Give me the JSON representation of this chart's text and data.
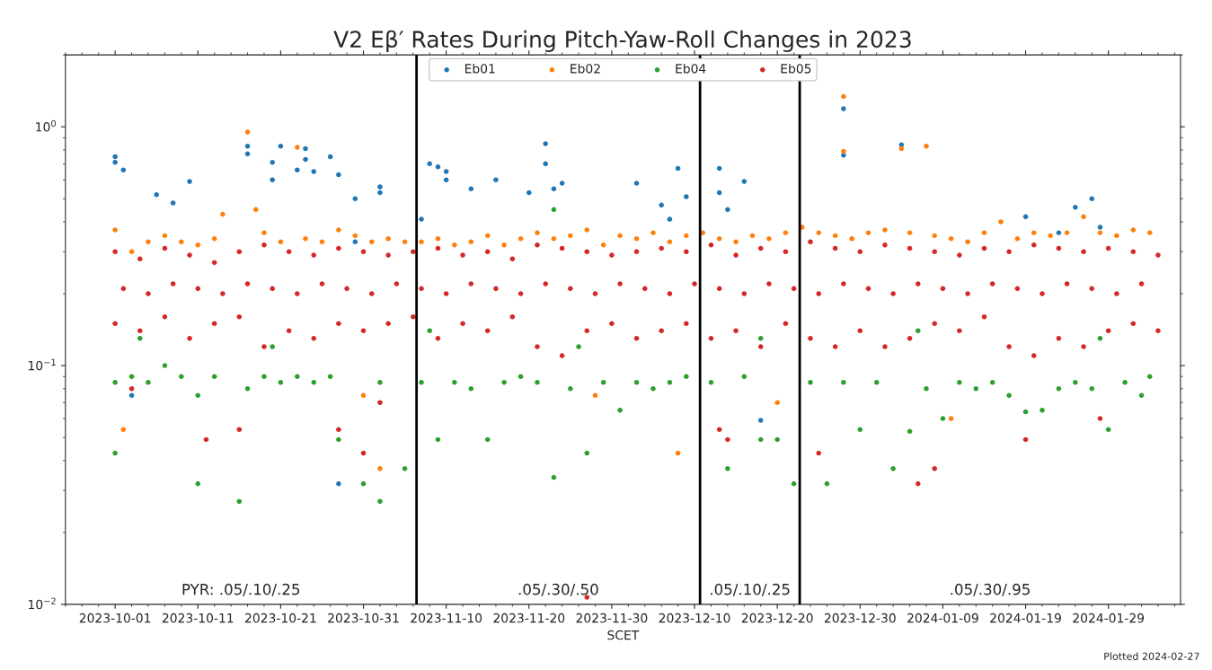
{
  "chart_data": {
    "type": "scatter",
    "title": "V2 Eβ′ Rates During Pitch-Yaw-Roll Changes in 2023",
    "xlabel": "SCET",
    "log": "y",
    "grid": false,
    "legend": "top",
    "marker": "circle",
    "xlim": [
      "2023-09-25",
      "2024-02-06T17:00"
    ],
    "xticks": [
      {
        "value": "2023-10-01",
        "label": "2023-10-01"
      },
      {
        "value": "2023-10-11",
        "label": "2023-10-11"
      },
      {
        "value": "2023-10-21",
        "label": "2023-10-21"
      },
      {
        "value": "2023-10-31",
        "label": "2023-10-31"
      },
      {
        "value": "2023-11-10",
        "label": "2023-11-10"
      },
      {
        "value": "2023-11-20",
        "label": "2023-11-20"
      },
      {
        "value": "2023-11-30",
        "label": "2023-11-30"
      },
      {
        "value": "2023-12-10",
        "label": "2023-12-10"
      },
      {
        "value": "2023-12-20",
        "label": "2023-12-20"
      },
      {
        "value": "2023-12-30",
        "label": "2023-12-30"
      },
      {
        "value": "2024-01-09",
        "label": "2024-01-09"
      },
      {
        "value": "2024-01-19",
        "label": "2024-01-19"
      },
      {
        "value": "2024-01-29",
        "label": "2024-01-29"
      }
    ],
    "ylim": [
      0.01,
      2
    ],
    "yticks": [
      {
        "value": 1,
        "label": "10$^{0}$"
      },
      {
        "value": 0.1,
        "label": "10$^{−1}$"
      },
      {
        "value": 0.01,
        "label": "10$^{−2}$"
      }
    ],
    "ref_lines": [
      {
        "axis": "x",
        "value": "2023-11-06T10:00",
        "color": "#000000",
        "line_style": "solid"
      },
      {
        "axis": "x",
        "value": "2023-12-10T16:00",
        "color": "#000000",
        "line_style": "solid"
      },
      {
        "axis": "x",
        "value": "2023-12-22T17:00",
        "color": "#000000",
        "line_style": "solid"
      }
    ],
    "annotations": [
      "PYR: .05/.10/.25",
      ".05/.30/.50",
      ".05/.10/.25",
      ".05/.30/.95",
      "Plotted 2024-02-27"
    ],
    "series": [
      {
        "name": "Eb01",
        "color": "#1f77b4",
        "x": [
          "2023-10-01",
          "2023-10-01",
          "2023-10-02",
          "2023-10-06",
          "2023-10-08",
          "2023-10-10",
          "2023-10-17",
          "2023-10-17",
          "2023-10-20",
          "2023-10-21",
          "2023-10-20",
          "2023-10-23",
          "2023-10-24",
          "2023-10-24",
          "2023-10-25",
          "2023-10-27",
          "2023-10-28",
          "2023-10-30",
          "2023-11-02",
          "2023-11-02",
          "2023-10-30",
          "2023-10-28",
          "2023-10-03",
          "2023-11-07",
          "2023-11-08",
          "2023-11-09",
          "2023-11-10",
          "2023-11-10",
          "2023-11-13",
          "2023-11-16",
          "2023-11-20",
          "2023-11-22",
          "2023-11-22",
          "2023-11-23",
          "2023-11-24",
          "2023-12-03",
          "2023-12-06",
          "2023-12-07",
          "2023-12-08",
          "2023-12-09",
          "2023-12-13",
          "2023-12-13",
          "2023-12-14",
          "2023-12-16",
          "2023-12-18",
          "2023-12-28",
          "2023-12-28",
          "2024-01-04",
          "2024-01-07",
          "2024-01-19",
          "2024-01-23",
          "2024-01-25",
          "2024-01-27",
          "2024-01-28"
        ],
        "values": [
          0.75,
          0.71,
          0.66,
          0.52,
          0.48,
          0.59,
          0.77,
          0.83,
          0.6,
          0.83,
          0.71,
          0.66,
          0.81,
          0.73,
          0.65,
          0.75,
          0.63,
          0.5,
          0.53,
          0.56,
          0.33,
          0.032,
          0.075,
          0.41,
          0.7,
          0.68,
          0.65,
          0.6,
          0.55,
          0.6,
          0.53,
          0.85,
          0.7,
          0.55,
          0.58,
          0.58,
          0.47,
          0.41,
          0.67,
          0.51,
          0.67,
          0.53,
          0.45,
          0.59,
          0.059,
          1.19,
          0.76,
          0.84,
          null,
          0.42,
          0.36,
          0.46,
          0.5,
          0.38
        ]
      },
      {
        "name": "Eb02",
        "color": "#ff7f0e",
        "x": [
          "2023-10-01",
          "2023-10-03",
          "2023-10-05",
          "2023-10-07",
          "2023-10-09",
          "2023-10-11",
          "2023-10-13",
          "2023-10-14",
          "2023-10-17",
          "2023-10-18",
          "2023-10-19",
          "2023-10-21",
          "2023-10-23",
          "2023-10-24",
          "2023-10-26",
          "2023-10-28",
          "2023-10-30",
          "2023-11-01",
          "2023-11-03",
          "2023-11-05",
          "2023-11-07",
          "2023-11-09",
          "2023-11-11",
          "2023-11-13",
          "2023-11-15",
          "2023-11-17",
          "2023-11-19",
          "2023-11-21",
          "2023-11-23",
          "2023-11-25",
          "2023-11-27",
          "2023-11-29",
          "2023-12-01",
          "2023-12-03",
          "2023-12-05",
          "2023-12-07",
          "2023-12-09",
          "2023-12-11",
          "2023-12-13",
          "2023-12-15",
          "2023-12-17",
          "2023-12-19",
          "2023-12-21",
          "2023-12-23",
          "2023-12-25",
          "2023-12-27",
          "2023-12-28",
          "2023-12-28",
          "2023-12-29",
          "2023-12-31",
          "2024-01-02",
          "2024-01-04",
          "2024-01-05",
          "2024-01-07",
          "2024-01-08",
          "2024-01-10",
          "2024-01-12",
          "2024-01-14",
          "2024-01-16",
          "2024-01-18",
          "2024-01-20",
          "2024-01-22",
          "2024-01-24",
          "2024-01-26",
          "2024-01-28",
          "2024-01-30",
          "2024-02-01",
          "2024-02-03",
          "2023-10-02",
          "2023-10-31",
          "2023-11-02",
          "2023-12-08",
          "2023-11-28",
          "2023-12-20",
          "2024-01-10"
        ],
        "values": [
          0.37,
          0.3,
          0.33,
          0.35,
          0.33,
          0.32,
          0.34,
          0.43,
          0.95,
          0.45,
          0.36,
          0.33,
          0.82,
          0.34,
          0.33,
          0.37,
          0.35,
          0.33,
          0.34,
          0.33,
          0.33,
          0.34,
          0.32,
          0.33,
          0.35,
          0.32,
          0.34,
          0.36,
          0.34,
          0.35,
          0.37,
          0.32,
          0.35,
          0.34,
          0.36,
          0.33,
          0.35,
          0.36,
          0.34,
          0.33,
          0.35,
          0.34,
          0.36,
          0.38,
          0.36,
          0.35,
          1.34,
          0.79,
          0.34,
          0.36,
          0.37,
          0.81,
          0.36,
          0.83,
          0.35,
          0.34,
          0.33,
          0.36,
          0.4,
          0.34,
          0.36,
          0.35,
          0.36,
          0.42,
          0.36,
          0.35,
          0.37,
          0.36,
          0.054,
          0.075,
          0.037,
          0.043,
          0.075,
          0.07,
          0.06
        ]
      },
      {
        "name": "Eb04",
        "color": "#2ca02c",
        "x": [
          "2023-10-01",
          "2023-10-01",
          "2023-10-03",
          "2023-10-05",
          "2023-10-07",
          "2023-10-09",
          "2023-10-11",
          "2023-10-11",
          "2023-10-13",
          "2023-10-16",
          "2023-10-17",
          "2023-10-19",
          "2023-10-21",
          "2023-10-23",
          "2023-10-25",
          "2023-10-27",
          "2023-10-28",
          "2023-10-31",
          "2023-11-02",
          "2023-11-02",
          "2023-11-05",
          "2023-11-07",
          "2023-11-09",
          "2023-11-11",
          "2023-11-13",
          "2023-11-15",
          "2023-11-17",
          "2023-11-19",
          "2023-11-21",
          "2023-11-23",
          "2023-11-23",
          "2023-11-25",
          "2023-11-27",
          "2023-11-29",
          "2023-12-01",
          "2023-12-03",
          "2023-12-05",
          "2023-12-07",
          "2023-12-09",
          "2023-12-12",
          "2023-12-14",
          "2023-12-16",
          "2023-12-18",
          "2023-12-20",
          "2023-12-22",
          "2023-12-24",
          "2023-12-26",
          "2023-12-28",
          "2023-12-30",
          "2024-01-01",
          "2024-01-03",
          "2024-01-05",
          "2024-01-07",
          "2024-01-09",
          "2024-01-11",
          "2024-01-13",
          "2024-01-15",
          "2024-01-17",
          "2024-01-19",
          "2024-01-21",
          "2024-01-23",
          "2024-01-25",
          "2024-01-27",
          "2024-01-29",
          "2024-01-31",
          "2024-02-02",
          "2024-02-03",
          "2023-10-04",
          "2023-10-20",
          "2023-11-08",
          "2023-11-26",
          "2023-12-18",
          "2024-01-06",
          "2024-01-28"
        ],
        "values": [
          0.043,
          0.085,
          0.09,
          0.085,
          0.1,
          0.09,
          0.032,
          0.075,
          0.09,
          0.027,
          0.08,
          0.09,
          0.085,
          0.09,
          0.085,
          0.09,
          0.049,
          0.032,
          0.027,
          0.085,
          0.037,
          0.085,
          0.049,
          0.085,
          0.08,
          0.049,
          0.085,
          0.09,
          0.085,
          0.034,
          0.45,
          0.08,
          0.043,
          0.085,
          0.065,
          0.085,
          0.08,
          0.085,
          0.09,
          0.085,
          0.037,
          0.09,
          0.049,
          0.049,
          0.032,
          0.085,
          0.032,
          0.085,
          0.054,
          0.085,
          0.037,
          0.053,
          0.08,
          0.06,
          0.085,
          0.08,
          0.085,
          0.075,
          0.064,
          0.065,
          0.08,
          0.085,
          0.08,
          0.054,
          0.085,
          0.075,
          0.09,
          0.13,
          0.12,
          0.14,
          0.12,
          0.13,
          0.14,
          0.13
        ]
      },
      {
        "name": "Eb05",
        "color": "#d62728",
        "x": [
          "2023-10-01",
          "2023-10-04",
          "2023-10-07",
          "2023-10-10",
          "2023-10-13",
          "2023-10-16",
          "2023-10-19",
          "2023-10-22",
          "2023-10-25",
          "2023-10-28",
          "2023-10-31",
          "2023-11-03",
          "2023-11-06",
          "2023-11-09",
          "2023-11-12",
          "2023-11-15",
          "2023-11-18",
          "2023-11-21",
          "2023-11-24",
          "2023-11-27",
          "2023-11-30",
          "2023-12-03",
          "2023-12-06",
          "2023-12-09",
          "2023-12-12",
          "2023-12-15",
          "2023-12-18",
          "2023-12-21",
          "2023-12-24",
          "2023-12-27",
          "2023-12-30",
          "2024-01-02",
          "2024-01-05",
          "2024-01-08",
          "2024-01-11",
          "2024-01-14",
          "2024-01-17",
          "2024-01-20",
          "2024-01-23",
          "2024-01-26",
          "2024-01-29",
          "2024-02-01",
          "2024-02-04",
          "2023-10-01",
          "2023-10-04",
          "2023-10-07",
          "2023-10-10",
          "2023-10-13",
          "2023-10-16",
          "2023-10-19",
          "2023-10-22",
          "2023-10-25",
          "2023-10-28",
          "2023-10-31",
          "2023-11-03",
          "2023-11-06",
          "2023-11-09",
          "2023-11-12",
          "2023-11-15",
          "2023-11-18",
          "2023-11-21",
          "2023-11-24",
          "2023-11-27",
          "2023-11-30",
          "2023-12-03",
          "2023-12-06",
          "2023-12-09",
          "2023-12-12",
          "2023-12-15",
          "2023-12-18",
          "2023-12-21",
          "2023-12-24",
          "2023-12-27",
          "2023-12-30",
          "2024-01-02",
          "2024-01-05",
          "2024-01-08",
          "2024-01-11",
          "2024-01-14",
          "2024-01-17",
          "2024-01-20",
          "2024-01-23",
          "2024-01-26",
          "2024-01-29",
          "2024-02-01",
          "2024-02-04",
          "2023-10-02",
          "2023-10-05",
          "2023-10-08",
          "2023-10-11",
          "2023-10-14",
          "2023-10-17",
          "2023-10-20",
          "2023-10-23",
          "2023-10-26",
          "2023-10-29",
          "2023-11-01",
          "2023-11-04",
          "2023-11-07",
          "2023-11-10",
          "2023-11-13",
          "2023-11-16",
          "2023-11-19",
          "2023-11-22",
          "2023-11-25",
          "2023-11-28",
          "2023-12-01",
          "2023-12-04",
          "2023-12-07",
          "2023-12-10",
          "2023-12-13",
          "2023-12-16",
          "2023-12-19",
          "2023-12-22",
          "2023-12-25",
          "2023-12-28",
          "2023-12-31",
          "2024-01-03",
          "2024-01-06",
          "2024-01-09",
          "2024-01-12",
          "2024-01-15",
          "2024-01-18",
          "2024-01-21",
          "2024-01-24",
          "2024-01-27",
          "2024-01-30",
          "2024-02-02",
          "2023-10-03",
          "2023-10-12",
          "2023-10-16",
          "2023-10-28",
          "2023-10-31",
          "2023-11-02",
          "2023-11-27",
          "2023-12-13",
          "2023-12-14",
          "2023-12-25",
          "2024-01-06",
          "2024-01-08",
          "2024-01-19",
          "2024-01-28"
        ],
        "values": [
          0.3,
          0.28,
          0.31,
          0.29,
          0.27,
          0.3,
          0.32,
          0.3,
          0.29,
          0.31,
          0.3,
          0.29,
          0.3,
          0.31,
          0.29,
          0.3,
          0.28,
          0.32,
          0.31,
          0.3,
          0.29,
          0.3,
          0.31,
          0.3,
          0.32,
          0.29,
          0.31,
          0.3,
          0.33,
          0.31,
          0.3,
          0.32,
          0.31,
          0.3,
          0.29,
          0.31,
          0.3,
          0.32,
          0.31,
          0.3,
          0.31,
          0.3,
          0.29,
          0.15,
          0.14,
          0.16,
          0.13,
          0.15,
          0.16,
          0.12,
          0.14,
          0.13,
          0.15,
          0.14,
          0.15,
          0.16,
          0.13,
          0.15,
          0.14,
          0.16,
          0.12,
          0.11,
          0.14,
          0.15,
          0.13,
          0.14,
          0.15,
          0.13,
          0.14,
          0.12,
          0.15,
          0.13,
          0.12,
          0.14,
          0.12,
          0.13,
          0.15,
          0.14,
          0.16,
          0.12,
          0.11,
          0.13,
          0.12,
          0.14,
          0.15,
          0.14,
          0.21,
          0.2,
          0.22,
          0.21,
          0.2,
          0.22,
          0.21,
          0.2,
          0.22,
          0.21,
          0.2,
          0.22,
          0.21,
          0.2,
          0.22,
          0.21,
          0.2,
          0.22,
          0.21,
          0.2,
          0.22,
          0.21,
          0.2,
          0.22,
          0.21,
          0.2,
          0.22,
          0.21,
          0.2,
          0.22,
          0.21,
          0.2,
          0.22,
          0.21,
          0.2,
          0.22,
          0.21,
          0.2,
          0.22,
          0.21,
          0.2,
          0.22,
          0.08,
          0.049,
          0.054,
          0.054,
          0.043,
          0.07,
          0.0107,
          0.054,
          0.049,
          0.043,
          0.032,
          0.037,
          0.049,
          0.06
        ]
      }
    ]
  }
}
